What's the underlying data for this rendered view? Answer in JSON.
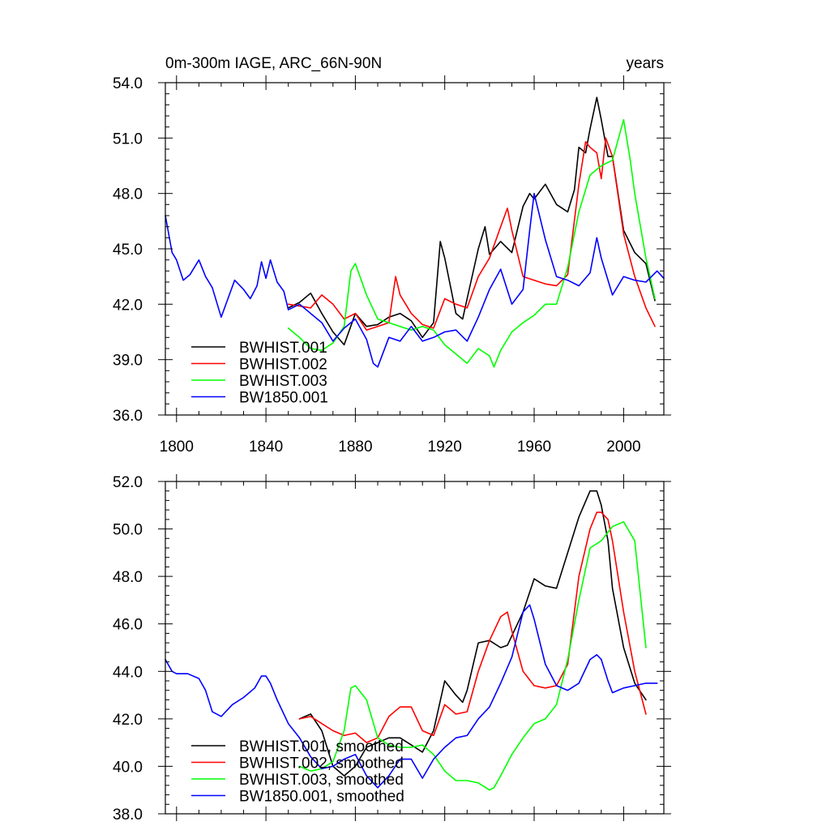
{
  "chart_data": [
    {
      "type": "line",
      "title": "0m-300m IAGE, ARC_66N-90N",
      "units": "years",
      "xlim": [
        1795,
        2018
      ],
      "ylim": [
        36,
        54
      ],
      "xticks": [
        1800,
        1840,
        1880,
        1920,
        1960,
        2000
      ],
      "yticks": [
        36,
        39,
        42,
        45,
        48,
        51,
        54
      ],
      "xtick_labels": [
        "1800",
        "1840",
        "1880",
        "1920",
        "1960",
        "2000"
      ],
      "ytick_labels": [
        "36.0",
        "39.0",
        "42.0",
        "45.0",
        "48.0",
        "51.0",
        "54.0"
      ],
      "legend_position": "bottom-left",
      "series": [
        {
          "name": "BWHIST.001",
          "color": "#000000",
          "x": [
            1850,
            1855,
            1860,
            1865,
            1870,
            1875,
            1880,
            1885,
            1890,
            1895,
            1900,
            1905,
            1910,
            1915,
            1918,
            1920,
            1925,
            1928,
            1930,
            1935,
            1938,
            1940,
            1945,
            1950,
            1955,
            1958,
            1960,
            1965,
            1970,
            1975,
            1978,
            1980,
            1983,
            1985,
            1988,
            1990,
            1993,
            1995,
            2000,
            2005,
            2010,
            2014
          ],
          "values": [
            41.8,
            42.1,
            42.6,
            41.5,
            40.5,
            39.8,
            41.5,
            40.8,
            40.9,
            41.3,
            41.5,
            41.1,
            40.2,
            41.0,
            45.4,
            44.5,
            41.5,
            41.2,
            42.3,
            45.0,
            46.2,
            44.7,
            45.4,
            44.8,
            47.3,
            48.0,
            47.7,
            48.5,
            47.4,
            47.0,
            48.2,
            50.5,
            50.2,
            51.5,
            53.2,
            52.0,
            50.0,
            50.0,
            46.0,
            44.8,
            44.2,
            42.2
          ]
        },
        {
          "name": "BWHIST.002",
          "color": "#ff0000",
          "x": [
            1850,
            1855,
            1860,
            1865,
            1870,
            1875,
            1880,
            1885,
            1890,
            1895,
            1898,
            1900,
            1905,
            1910,
            1915,
            1920,
            1925,
            1930,
            1935,
            1940,
            1945,
            1948,
            1950,
            1955,
            1960,
            1965,
            1970,
            1975,
            1980,
            1983,
            1985,
            1988,
            1990,
            1992,
            1995,
            2000,
            2005,
            2010,
            2014
          ],
          "values": [
            42.0,
            41.9,
            41.8,
            42.5,
            42.0,
            41.2,
            41.5,
            40.6,
            40.8,
            41.0,
            43.5,
            42.5,
            41.5,
            40.9,
            40.7,
            42.3,
            42.0,
            41.8,
            43.5,
            44.5,
            46.2,
            47.2,
            46.0,
            43.5,
            43.3,
            43.1,
            43.0,
            43.6,
            48.5,
            50.8,
            50.5,
            50.2,
            48.8,
            51.0,
            50.0,
            45.8,
            43.5,
            41.8,
            40.8
          ]
        },
        {
          "name": "BWHIST.003",
          "color": "#00ff00",
          "x": [
            1850,
            1855,
            1860,
            1865,
            1870,
            1875,
            1878,
            1880,
            1885,
            1890,
            1895,
            1900,
            1905,
            1910,
            1915,
            1920,
            1925,
            1930,
            1935,
            1940,
            1942,
            1945,
            1950,
            1955,
            1960,
            1965,
            1970,
            1975,
            1980,
            1985,
            1990,
            1995,
            2000,
            2003,
            2005,
            2010,
            2014
          ],
          "values": [
            40.7,
            40.2,
            39.6,
            39.5,
            39.9,
            40.8,
            43.8,
            44.2,
            42.5,
            41.2,
            41.0,
            40.8,
            40.6,
            40.8,
            40.6,
            39.8,
            39.3,
            38.8,
            39.6,
            39.2,
            38.6,
            39.5,
            40.5,
            41.0,
            41.4,
            42.0,
            42.0,
            44.0,
            47.0,
            49.0,
            49.5,
            49.8,
            52.0,
            49.8,
            48.0,
            44.5,
            42.3
          ]
        },
        {
          "name": "BW1850.001",
          "color": "#0000ff",
          "x": [
            1795,
            1798,
            1800,
            1803,
            1806,
            1810,
            1813,
            1816,
            1820,
            1823,
            1826,
            1830,
            1833,
            1836,
            1838,
            1840,
            1842,
            1845,
            1848,
            1850,
            1855,
            1860,
            1865,
            1870,
            1875,
            1880,
            1885,
            1888,
            1890,
            1895,
            1900,
            1905,
            1910,
            1915,
            1920,
            1925,
            1930,
            1935,
            1940,
            1945,
            1950,
            1955,
            1958,
            1960,
            1965,
            1970,
            1975,
            1980,
            1985,
            1988,
            1990,
            1995,
            2000,
            2005,
            2010,
            2015,
            2018
          ],
          "values": [
            46.8,
            44.8,
            44.4,
            43.3,
            43.6,
            44.4,
            43.5,
            42.9,
            41.3,
            42.3,
            43.3,
            42.8,
            42.3,
            43.0,
            44.3,
            43.4,
            44.4,
            43.2,
            42.7,
            41.7,
            42.0,
            41.5,
            41.0,
            40.0,
            40.7,
            41.2,
            40.1,
            38.8,
            38.6,
            40.2,
            40.0,
            40.8,
            40.0,
            40.2,
            40.5,
            40.6,
            40.0,
            41.3,
            42.8,
            43.9,
            42.0,
            42.8,
            46.0,
            48.0,
            45.5,
            43.5,
            43.3,
            43.0,
            43.7,
            45.6,
            44.5,
            42.5,
            43.5,
            43.3,
            43.2,
            43.8,
            43.4
          ]
        }
      ]
    },
    {
      "type": "line",
      "title": "",
      "xlim": [
        1795,
        2018
      ],
      "ylim": [
        38,
        52
      ],
      "xticks": [
        1800,
        1840,
        1880,
        1920,
        1960,
        2000
      ],
      "yticks": [
        38,
        40,
        42,
        44,
        46,
        48,
        50,
        52
      ],
      "ytick_labels": [
        "38.0",
        "40.0",
        "42.0",
        "44.0",
        "46.0",
        "48.0",
        "50.0",
        "52.0"
      ],
      "legend_position": "bottom-left",
      "series": [
        {
          "name": "BWHIST.001, smoothed",
          "color": "#000000",
          "x": [
            1855,
            1860,
            1865,
            1870,
            1875,
            1880,
            1885,
            1890,
            1895,
            1900,
            1905,
            1910,
            1915,
            1920,
            1925,
            1928,
            1930,
            1935,
            1940,
            1945,
            1948,
            1950,
            1955,
            1960,
            1965,
            1970,
            1975,
            1980,
            1985,
            1988,
            1990,
            1993,
            1995,
            2000,
            2005,
            2010
          ],
          "values": [
            42.0,
            42.2,
            41.5,
            40.0,
            39.6,
            40.0,
            40.8,
            41.0,
            41.2,
            41.2,
            40.9,
            40.6,
            41.5,
            43.6,
            43.0,
            42.7,
            43.2,
            45.2,
            45.3,
            45.0,
            45.1,
            45.5,
            46.5,
            47.9,
            47.6,
            47.5,
            49.0,
            50.5,
            51.6,
            51.6,
            51.0,
            49.5,
            47.5,
            45.0,
            43.5,
            42.8
          ]
        },
        {
          "name": "BWHIST.002, smoothed",
          "color": "#ff0000",
          "x": [
            1855,
            1860,
            1865,
            1870,
            1875,
            1880,
            1885,
            1890,
            1895,
            1900,
            1905,
            1910,
            1915,
            1920,
            1925,
            1930,
            1935,
            1940,
            1945,
            1948,
            1950,
            1955,
            1960,
            1965,
            1970,
            1975,
            1980,
            1985,
            1988,
            1990,
            1993,
            1995,
            2000,
            2005,
            2010
          ],
          "values": [
            42.0,
            42.1,
            41.8,
            41.5,
            41.3,
            41.4,
            41.0,
            41.2,
            42.1,
            42.5,
            42.5,
            41.5,
            41.3,
            42.6,
            42.2,
            42.3,
            44.0,
            45.3,
            46.3,
            46.5,
            45.7,
            44.0,
            43.4,
            43.3,
            43.4,
            44.3,
            48.0,
            50.0,
            50.7,
            50.7,
            50.4,
            49.5,
            46.5,
            44.0,
            42.2
          ]
        },
        {
          "name": "BWHIST.003, smoothed",
          "color": "#00ff00",
          "x": [
            1855,
            1860,
            1865,
            1870,
            1875,
            1878,
            1880,
            1885,
            1890,
            1895,
            1900,
            1905,
            1910,
            1915,
            1920,
            1925,
            1930,
            1935,
            1940,
            1942,
            1945,
            1950,
            1955,
            1960,
            1965,
            1970,
            1975,
            1980,
            1985,
            1990,
            1995,
            2000,
            2005,
            2010
          ],
          "values": [
            40.0,
            39.8,
            39.9,
            40.2,
            41.5,
            43.3,
            43.4,
            42.8,
            41.2,
            40.9,
            40.8,
            40.8,
            40.9,
            40.5,
            39.8,
            39.4,
            39.4,
            39.3,
            39.0,
            39.1,
            39.6,
            40.5,
            41.2,
            41.8,
            42.0,
            42.6,
            44.5,
            47.0,
            49.2,
            49.5,
            50.1,
            50.3,
            49.5,
            45.0
          ]
        },
        {
          "name": "BW1850.001, smoothed",
          "color": "#0000ff",
          "x": [
            1795,
            1798,
            1800,
            1805,
            1810,
            1813,
            1816,
            1820,
            1825,
            1830,
            1835,
            1838,
            1840,
            1842,
            1845,
            1850,
            1855,
            1860,
            1865,
            1870,
            1875,
            1880,
            1885,
            1890,
            1895,
            1900,
            1905,
            1910,
            1915,
            1920,
            1925,
            1930,
            1935,
            1940,
            1945,
            1950,
            1955,
            1958,
            1960,
            1965,
            1970,
            1975,
            1980,
            1985,
            1988,
            1990,
            1993,
            1995,
            2000,
            2005,
            2010,
            2015
          ],
          "values": [
            44.5,
            44.0,
            43.9,
            43.9,
            43.7,
            43.2,
            42.3,
            42.1,
            42.6,
            42.9,
            43.3,
            43.8,
            43.8,
            43.5,
            42.8,
            41.8,
            41.2,
            40.4,
            39.9,
            40.0,
            40.3,
            40.5,
            39.6,
            39.1,
            39.6,
            40.3,
            40.3,
            39.5,
            40.3,
            40.8,
            41.2,
            41.3,
            42.0,
            42.5,
            43.5,
            44.6,
            46.5,
            46.8,
            46.2,
            44.3,
            43.4,
            43.2,
            43.5,
            44.5,
            44.7,
            44.5,
            43.6,
            43.1,
            43.3,
            43.4,
            43.5,
            43.5
          ]
        }
      ]
    }
  ]
}
